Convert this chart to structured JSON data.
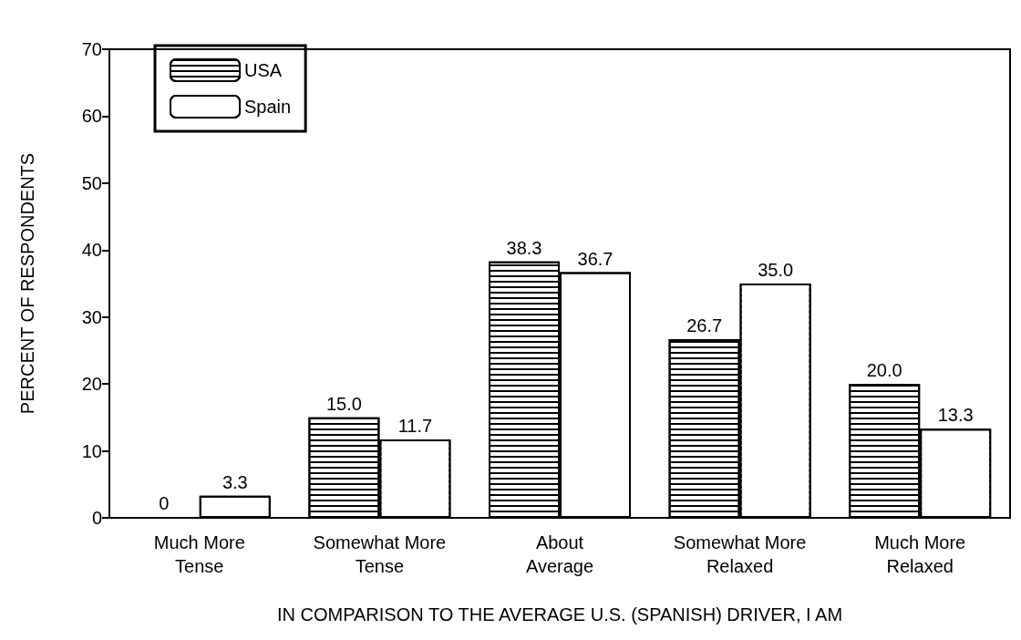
{
  "chart_data": {
    "type": "bar",
    "xlabel": "IN COMPARISON TO THE AVERAGE U.S. (SPANISH) DRIVER, I AM",
    "ylabel": "PERCENT OF RESPONDENTS",
    "categories": [
      "Much More\nTense",
      "Somewhat More\nTense",
      "About\nAverage",
      "Somewhat More\nRelaxed",
      "Much More\nRelaxed"
    ],
    "series": [
      {
        "name": "USA",
        "color": "#000000",
        "values": [
          0,
          15.0,
          38.3,
          26.7,
          20.0
        ],
        "value_labels": [
          "0",
          "15.0",
          "38.3",
          "26.7",
          "20.0"
        ]
      },
      {
        "name": "Spain",
        "color": "#ffffff",
        "values": [
          3.3,
          11.7,
          36.7,
          35.0,
          13.3
        ],
        "value_labels": [
          "3.3",
          "11.7",
          "36.7",
          "35.0",
          "13.3"
        ]
      }
    ],
    "ylim": [
      0,
      70
    ],
    "yticks": [
      0,
      10,
      20,
      30,
      40,
      50,
      60,
      70
    ],
    "grid": false,
    "legend": "top left"
  }
}
